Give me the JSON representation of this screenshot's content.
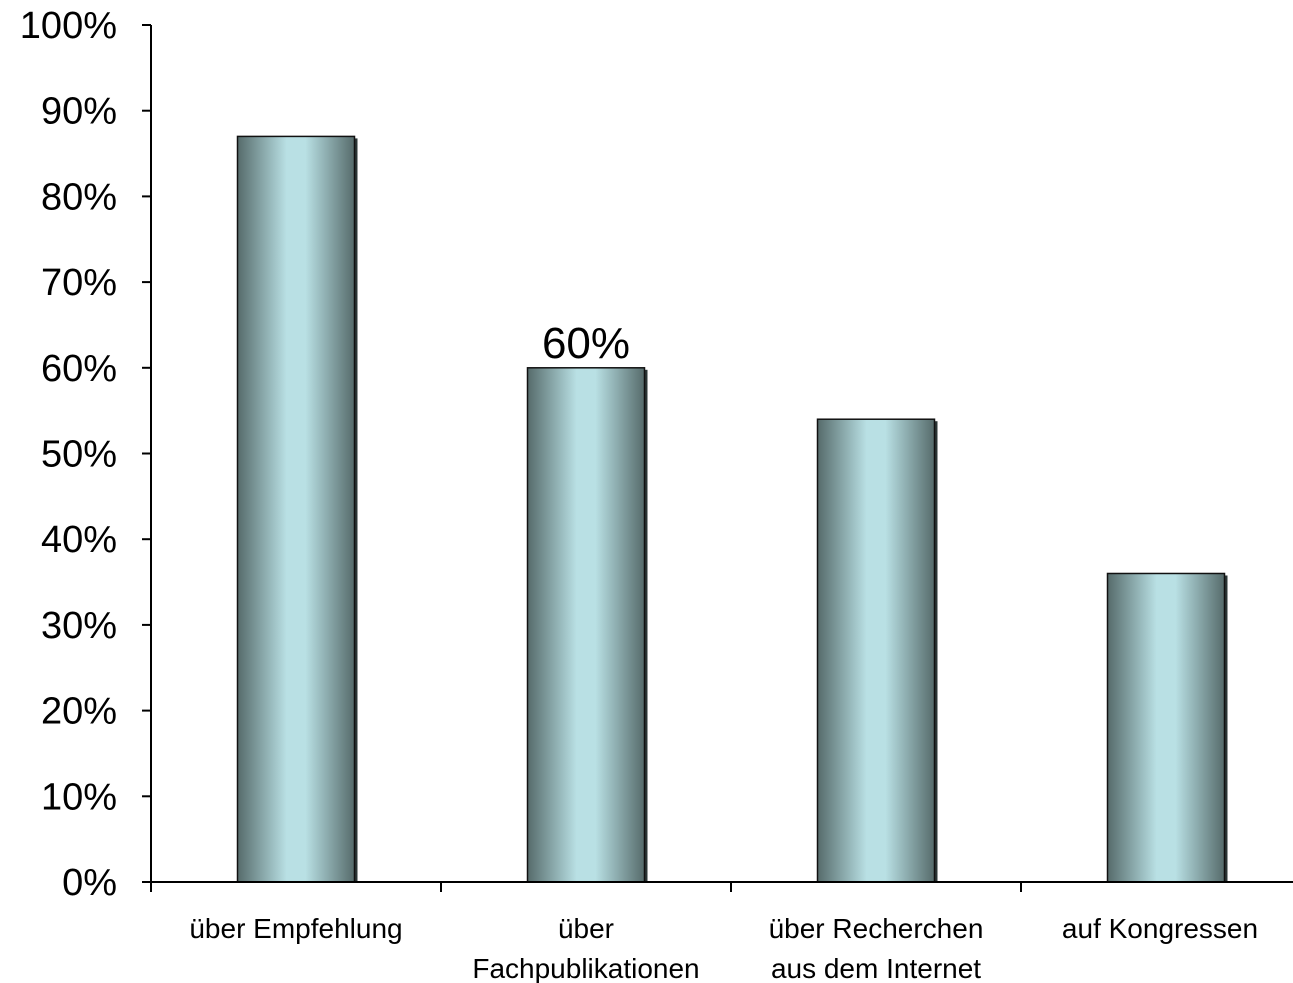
{
  "chart_data": {
    "type": "bar",
    "categories": [
      [
        "über Empfehlung"
      ],
      [
        "über",
        "Fachpublikationen"
      ],
      [
        "über Recherchen",
        "aus dem Internet"
      ],
      [
        "auf Kongressen"
      ]
    ],
    "values": [
      87,
      60,
      54,
      36
    ],
    "data_labels": [
      null,
      "60%",
      null,
      null
    ],
    "ylim": [
      0,
      100
    ],
    "yticks": [
      "0%",
      "10%",
      "20%",
      "30%",
      "40%",
      "50%",
      "60%",
      "70%",
      "80%",
      "90%",
      "100%"
    ],
    "grid": false,
    "legend": "none",
    "colors": {
      "bar_edge": "#566b6b",
      "bar_center": "#b9e0e4",
      "bar_outline": "#111111",
      "axis": "#000000"
    }
  }
}
